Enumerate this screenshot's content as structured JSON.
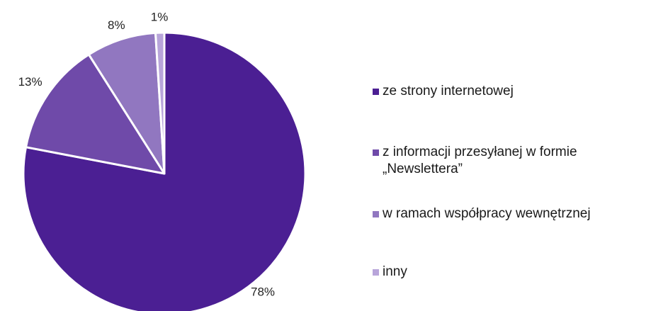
{
  "chart_data": {
    "type": "pie",
    "slices": [
      {
        "label": "ze strony internetowej",
        "value": 78,
        "value_label": "78%",
        "color": "#4b1f93"
      },
      {
        "label": "z informacji przesyłanej w formie\n„Newslettera”",
        "value": 13,
        "value_label": "13%",
        "color": "#6f4aa9"
      },
      {
        "label": "w ramach współpracy wewnętrznej",
        "value": 8,
        "value_label": "8%",
        "color": "#9177c0"
      },
      {
        "label": "inny",
        "value": 1,
        "value_label": "1%",
        "color": "#b8a5da"
      }
    ],
    "legend_position": "right",
    "start_angle_deg": 0,
    "direction": "clockwise"
  }
}
